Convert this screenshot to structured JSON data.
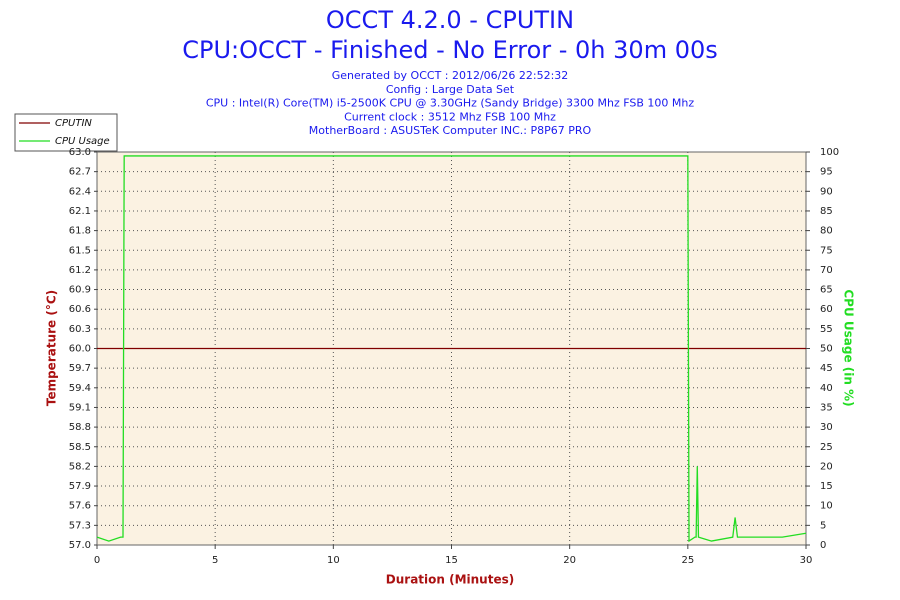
{
  "chart_data": {
    "type": "line",
    "title": "OCCT 4.2.0 - CPUTIN",
    "subtitle": "CPU:OCCT - Finished - No Error - 0h 30m 00s",
    "info": [
      "Generated by OCCT : 2012/06/26 22:52:32",
      "Config : Large Data Set",
      "CPU : Intel(R) Core(TM) i5-2500K CPU @ 3.30GHz (Sandy Bridge) 3300 Mhz FSB 100 Mhz",
      "Current clock : 3512 Mhz FSB 100 Mhz",
      "MotherBoard : ASUSTeK Computer INC.: P8P67 PRO"
    ],
    "x_label": "Duration (Minutes)",
    "y_label": "Temperature (°C)",
    "y2_label": "CPU Usage (in %)",
    "x": [
      0,
      0.5,
      1.0,
      1.1,
      1.15,
      5,
      10,
      15,
      20,
      24.9,
      25.0,
      25.05,
      25.3,
      25.35,
      25.4,
      25.45,
      26,
      26.9,
      27.0,
      27.1,
      28,
      29,
      30
    ],
    "series": [
      {
        "name": "CPUTIN",
        "color": "#800000",
        "values": [
          60,
          60,
          60,
          60,
          60,
          60,
          60,
          60,
          60,
          60,
          60,
          60,
          60,
          60,
          60,
          60,
          60,
          60,
          60,
          60,
          60,
          60,
          60
        ]
      },
      {
        "name": "CPU Usage",
        "color": "#22dd22",
        "axis": "y2",
        "values": [
          2,
          1,
          2,
          2,
          99,
          99,
          99,
          99,
          99,
          99,
          99,
          1,
          2,
          2,
          20,
          2,
          1,
          2,
          7,
          2,
          2,
          2,
          3
        ]
      }
    ],
    "xlim": [
      0,
      30
    ],
    "xticks": [
      0,
      5,
      10,
      15,
      20,
      25,
      30
    ],
    "ylim": [
      57,
      63
    ],
    "yticks": [
      {
        "value": 57,
        "label": "57.0"
      },
      57.3,
      57.6,
      57.9,
      58.2,
      58.5,
      58.8,
      59.1,
      59.4,
      59.7,
      {
        "value": 60,
        "label": "60.0"
      },
      60.3,
      60.6,
      60.9,
      61.2,
      61.5,
      61.8,
      62.1,
      62.4,
      62.7,
      {
        "value": 63,
        "label": "63.0"
      }
    ],
    "y2lim": [
      0,
      100
    ],
    "y2ticks": [
      0,
      5,
      10,
      15,
      20,
      25,
      30,
      35,
      40,
      45,
      50,
      55,
      60,
      65,
      70,
      75,
      80,
      85,
      90,
      95,
      100
    ],
    "grid": true
  }
}
